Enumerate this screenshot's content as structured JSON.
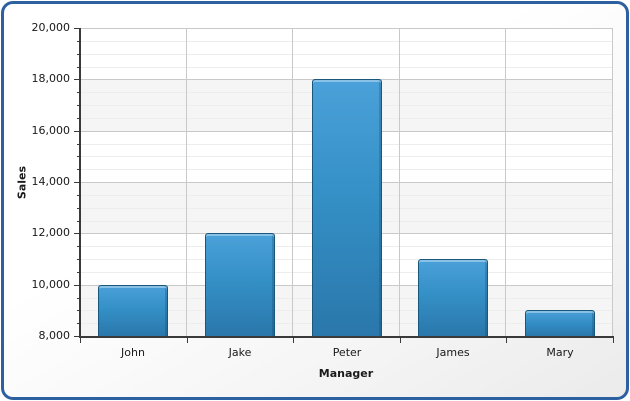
{
  "chart_data": {
    "type": "bar",
    "categories": [
      "John",
      "Jake",
      "Peter",
      "James",
      "Mary"
    ],
    "values": [
      10000,
      12000,
      18000,
      11000,
      9000
    ],
    "title": "",
    "xlabel": "Manager",
    "ylabel": "Sales",
    "ylim": [
      8000,
      20000
    ],
    "y_major_step": 2000,
    "y_minor_step": 500,
    "y_tick_labels": [
      "8,000",
      "10,000",
      "12,000",
      "14,000",
      "16,000",
      "18,000",
      "20,000"
    ],
    "grid": true,
    "legend_position": "none",
    "series_count": 1
  },
  "colors": {
    "frame_border": "#2d60a0",
    "bar_fill_top": "#4ba1d9",
    "bar_fill_mid": "#3490c6",
    "bar_fill_bottom": "#2a77ab",
    "bar_border": "#1a577c",
    "grid_major": "#c9c9c9",
    "grid_minor": "#ededed",
    "band_alt": "#f5f5f5",
    "band_main": "#ffffff",
    "axis_line": "#3a3a3a",
    "text": "#1a1a1a",
    "plot_bg": "#ffffff"
  }
}
